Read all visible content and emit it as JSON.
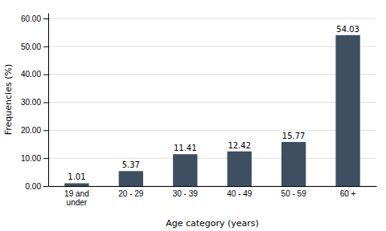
{
  "chart_data": {
    "type": "bar",
    "categories": [
      "19 and\nunder",
      "20 - 29",
      "30 - 39",
      "40 - 49",
      "50 - 59",
      "60 +"
    ],
    "values": [
      1.01,
      5.37,
      11.41,
      12.42,
      15.77,
      54.03
    ],
    "color": "#3d4f61",
    "xlabel": "Age category (years)",
    "ylabel": "Frequencies (%)",
    "ylim": [
      0,
      62
    ],
    "yticks": [
      {
        "value": 0,
        "label": "0.00"
      },
      {
        "value": 10,
        "label": "10.00"
      },
      {
        "value": 20,
        "label": "20.00"
      },
      {
        "value": 30,
        "label": "30.00"
      },
      {
        "value": 40,
        "label": "40.00"
      },
      {
        "value": 50,
        "label": "50.00"
      },
      {
        "value": 60,
        "label": "60.00"
      }
    ],
    "grid": true,
    "data_labels": true
  }
}
